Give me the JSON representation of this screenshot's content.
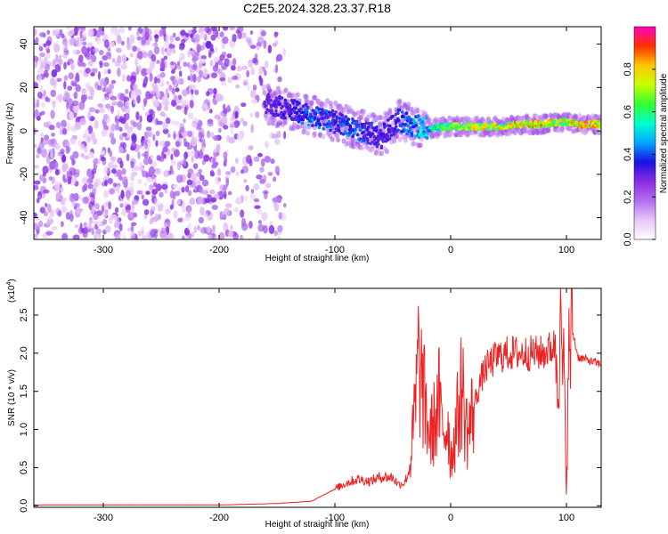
{
  "title": "C2E5.2024.328.23.37.R18",
  "colors": {
    "snr_line": "#ee2222",
    "colormap": [
      "#ffffff",
      "#e7c6f7",
      "#b26ef0",
      "#8a2be2",
      "#1a10e0",
      "#00a8ff",
      "#00ffd0",
      "#30ff30",
      "#c8ff00",
      "#ffc800",
      "#ff3000",
      "#ff00c0"
    ]
  },
  "chart_data": [
    {
      "type": "heatmap",
      "title": "C2E5.2024.328.23.37.R18",
      "xlabel": "Height of straight line (km)",
      "ylabel": "Frequency (Hz)",
      "xlim": [
        -360,
        130
      ],
      "ylim": [
        -50,
        48
      ],
      "xticks": [
        -300,
        -200,
        -100,
        0,
        100
      ],
      "xtick_labels": [
        "-300",
        "-200",
        "-100",
        "0",
        "100"
      ],
      "yticks": [
        -40,
        -20,
        0,
        20,
        40
      ],
      "ytick_labels": [
        "-40",
        "-20",
        "0",
        "20",
        "40"
      ],
      "colorbar": {
        "label": "Normalized spectral amplitude",
        "range": [
          0,
          1
        ],
        "ticks": [
          0,
          0.2,
          0.4,
          0.6,
          0.8
        ],
        "tick_labels": [
          "0.0",
          "0.2",
          "0.4",
          "0.6",
          "0.8"
        ]
      },
      "noise_region_x": [
        -360,
        -155
      ],
      "ridge": {
        "x": [
          -160,
          -140,
          -120,
          -100,
          -80,
          -60,
          -45,
          -30,
          -20,
          0,
          20,
          40,
          60,
          80,
          90,
          100,
          110,
          130
        ],
        "frequency": [
          13,
          10,
          7,
          4,
          1,
          -3,
          5,
          2,
          1,
          2,
          2,
          2,
          3,
          3,
          4,
          4,
          3,
          3
        ],
        "peak_amplitude": [
          0.3,
          0.35,
          0.45,
          0.4,
          0.45,
          0.35,
          0.4,
          0.5,
          0.55,
          0.75,
          0.8,
          0.8,
          0.85,
          0.85,
          0.8,
          0.8,
          0.85,
          0.85
        ]
      }
    },
    {
      "type": "line",
      "xlabel": "Height of straight line (km)",
      "ylabel": "SNR (10 * v/v)",
      "scale_label": "(x10",
      "scale_exponent": "4",
      "scale_close": ")",
      "xlim": [
        -360,
        130
      ],
      "ylim": [
        -0.02,
        2.85
      ],
      "xticks": [
        -300,
        -200,
        -100,
        0,
        100
      ],
      "xtick_labels": [
        "-300",
        "-200",
        "-100",
        "0",
        "100"
      ],
      "yticks": [
        0,
        0.5,
        1,
        1.5,
        2,
        2.5
      ],
      "ytick_labels": [
        "0.0",
        "0.5",
        "1.0",
        "1.5",
        "2.0",
        "2.5"
      ],
      "series": [
        {
          "x": [
            -360,
            -300,
            -200,
            -150,
            -120,
            -100,
            -90,
            -80,
            -70,
            -60,
            -50,
            -45,
            -40,
            -36,
            -33,
            -30,
            -28,
            -25,
            -22,
            -20,
            -18,
            -15,
            -12,
            -10,
            -8,
            -5,
            -2,
            0,
            5,
            10,
            12,
            15,
            20,
            25,
            30,
            40,
            50,
            60,
            70,
            80,
            85,
            90,
            95,
            98,
            100,
            102,
            105,
            110,
            120,
            130
          ],
          "y": [
            0.01,
            0.01,
            0.01,
            0.03,
            0.06,
            0.22,
            0.3,
            0.35,
            0.32,
            0.38,
            0.37,
            0.28,
            0.3,
            0.45,
            0.85,
            1.4,
            1.9,
            1.6,
            1.3,
            1.1,
            0.9,
            1.05,
            1.2,
            1.4,
            1.05,
            1.0,
            1.1,
            0.6,
            1.05,
            1.6,
            1.2,
            0.95,
            1.3,
            1.6,
            1.8,
            1.95,
            2.0,
            2.0,
            2.0,
            2.0,
            2.05,
            2.1,
            2.1,
            1.6,
            0.2,
            1.9,
            2.3,
            1.95,
            1.9,
            1.85
          ]
        }
      ]
    }
  ]
}
